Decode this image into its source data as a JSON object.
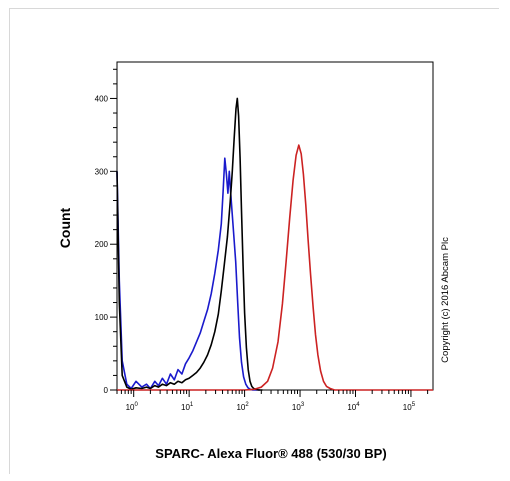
{
  "chart_data": {
    "type": "line",
    "title": "",
    "xlabel": "SPARC- Alexa Fluor® 488 (530/30 BP)",
    "ylabel": "Count",
    "x_scale": "log",
    "xlim": [
      0.5,
      250000
    ],
    "ylim": [
      0,
      450
    ],
    "grid": false,
    "legend": "none",
    "annotation": "Copyright (c) 2016 Abcam Plc",
    "y_ticks": [
      {
        "value": 0,
        "label": "0"
      },
      {
        "value": 100,
        "label": "100"
      },
      {
        "value": 200,
        "label": "200"
      },
      {
        "value": 300,
        "label": "300"
      },
      {
        "value": 400,
        "label": "400"
      }
    ],
    "x_ticks": [
      {
        "value": 1,
        "base": "10",
        "exp": "0"
      },
      {
        "value": 10,
        "base": "10",
        "exp": "1"
      },
      {
        "value": 100,
        "base": "10",
        "exp": "2"
      },
      {
        "value": 1000,
        "base": "10",
        "exp": "3"
      },
      {
        "value": 10000,
        "base": "10",
        "exp": "4"
      },
      {
        "value": 100000,
        "base": "10",
        "exp": "5"
      }
    ],
    "series": [
      {
        "color": "#1a1acc",
        "x": [
          0.5,
          0.55,
          0.62,
          0.75,
          0.9,
          1.1,
          1.4,
          1.7,
          2.0,
          2.4,
          2.8,
          3.3,
          3.9,
          4.6,
          5.4,
          6.3,
          7.4,
          8.6,
          10,
          11.7,
          13.6,
          15.8,
          18.4,
          21.4,
          25,
          29,
          33.6,
          38,
          41,
          44,
          47,
          50,
          53,
          56,
          60,
          64,
          69,
          75,
          81,
          88,
          96,
          105,
          115,
          126,
          140,
          160,
          190
        ],
        "y": [
          300,
          150,
          40,
          8,
          2,
          12,
          4,
          8,
          2,
          12,
          6,
          16,
          8,
          22,
          14,
          28,
          22,
          36,
          44,
          54,
          66,
          78,
          94,
          110,
          132,
          160,
          192,
          228,
          272,
          318,
          296,
          270,
          300,
          272,
          240,
          212,
          176,
          120,
          72,
          38,
          18,
          8,
          3,
          1,
          0,
          0,
          0
        ]
      },
      {
        "color": "#000000",
        "x": [
          0.5,
          0.55,
          0.62,
          0.75,
          0.9,
          1.1,
          1.4,
          1.7,
          2.0,
          2.4,
          2.8,
          3.3,
          3.9,
          4.6,
          5.4,
          6.3,
          7.4,
          8.6,
          10,
          11.7,
          13.6,
          15.8,
          18.4,
          21.4,
          25,
          29,
          33.6,
          38,
          43,
          49,
          55,
          60,
          65,
          70,
          74,
          78,
          83,
          88,
          94,
          100,
          108,
          116,
          125,
          135,
          146,
          160,
          180,
          210
        ],
        "y": [
          300,
          120,
          20,
          4,
          1,
          3,
          2,
          4,
          2,
          6,
          4,
          8,
          6,
          10,
          8,
          12,
          10,
          14,
          16,
          20,
          24,
          30,
          38,
          48,
          62,
          80,
          104,
          136,
          172,
          210,
          258,
          300,
          346,
          386,
          400,
          376,
          318,
          246,
          170,
          106,
          58,
          28,
          12,
          5,
          2,
          1,
          0,
          0
        ]
      },
      {
        "color": "#cc2222",
        "x": [
          0.5,
          10,
          100,
          150,
          200,
          260,
          320,
          400,
          480,
          560,
          650,
          750,
          850,
          950,
          1050,
          1150,
          1270,
          1400,
          1550,
          1720,
          1900,
          2100,
          2350,
          2650,
          3000,
          3500,
          4200,
          5200,
          7000,
          12000,
          50000,
          250000
        ],
        "y": [
          0,
          0,
          0,
          1,
          4,
          12,
          30,
          66,
          118,
          176,
          236,
          288,
          322,
          336,
          324,
          296,
          254,
          206,
          158,
          114,
          76,
          48,
          26,
          12,
          5,
          2,
          0,
          0,
          0,
          0,
          0,
          0
        ]
      }
    ]
  }
}
